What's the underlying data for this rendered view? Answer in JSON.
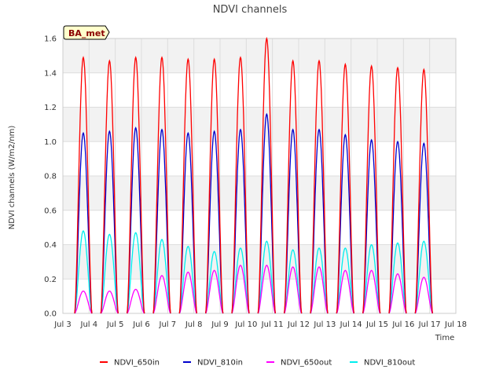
{
  "chart_data": {
    "type": "line",
    "title": "NDVI channels",
    "xlabel": "Time",
    "ylabel": "NDVI channels (W/m2/nm)",
    "badge": "BA_met",
    "ylim": [
      0,
      1.6
    ],
    "yticks": [
      0.0,
      0.2,
      0.4,
      0.6,
      0.8,
      1.0,
      1.2,
      1.4,
      1.6
    ],
    "ytick_labels": [
      "0.0",
      "0.2",
      "0.4",
      "0.6",
      "0.8",
      "1.0",
      "1.2",
      "1.4",
      "1.6"
    ],
    "xlim": [
      3,
      18
    ],
    "xticks": [
      3,
      4,
      5,
      6,
      7,
      8,
      9,
      10,
      11,
      12,
      13,
      14,
      15,
      16,
      17,
      18
    ],
    "xtick_labels": [
      "Jul 3",
      "Jul 4",
      "Jul 5",
      "Jul 6",
      "Jul 7",
      "Jul 8",
      "Jul 9",
      "Jul 10",
      "Jul 11",
      "Jul 12",
      "Jul 13",
      "Jul 14",
      "Jul 15",
      "Jul 16",
      "Jul 17",
      "Jul 18"
    ],
    "grid": true,
    "legend_position": "bottom",
    "day_centers": [
      3.78,
      4.78,
      5.78,
      6.78,
      7.78,
      8.78,
      9.78,
      10.78,
      11.78,
      12.78,
      13.78,
      14.78,
      15.78,
      16.78
    ],
    "series": [
      {
        "name": "NDVI_650in",
        "color": "#ff0000",
        "peaks": [
          1.49,
          1.47,
          1.49,
          1.49,
          1.48,
          1.48,
          1.49,
          1.6,
          1.47,
          1.47,
          1.45,
          1.44,
          1.43,
          1.42
        ]
      },
      {
        "name": "NDVI_810in",
        "color": "#0000cc",
        "peaks": [
          1.05,
          1.06,
          1.08,
          1.07,
          1.05,
          1.06,
          1.07,
          1.16,
          1.07,
          1.07,
          1.04,
          1.01,
          1.0,
          0.99
        ]
      },
      {
        "name": "NDVI_650out",
        "color": "#ff00ff",
        "peaks": [
          0.13,
          0.13,
          0.14,
          0.22,
          0.24,
          0.25,
          0.28,
          0.28,
          0.27,
          0.27,
          0.25,
          0.25,
          0.23,
          0.21
        ]
      },
      {
        "name": "NDVI_810out",
        "color": "#00eeee",
        "peaks": [
          0.48,
          0.46,
          0.47,
          0.43,
          0.39,
          0.36,
          0.38,
          0.42,
          0.37,
          0.38,
          0.38,
          0.4,
          0.41,
          0.42
        ]
      }
    ]
  },
  "colors": {
    "band": "#f2f2f2",
    "grid": "#dddddd",
    "badge_bg": "#ffffcc"
  }
}
